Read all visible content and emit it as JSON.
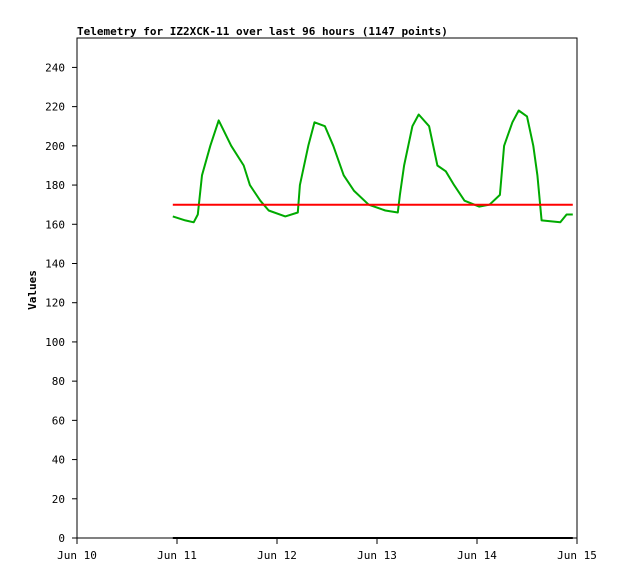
{
  "chart_data": {
    "type": "line",
    "title": "Telemetry for IZ2XCK-11 over last 96 hours (1147 points)",
    "xlabel": "",
    "ylabel": "Values",
    "xlim": [
      "Jun 10 00:00",
      "Jun 15 00:00"
    ],
    "ylim": [
      0,
      255
    ],
    "x_ticks": [
      "Jun 10",
      "Jun 11",
      "Jun 12",
      "Jun 13",
      "Jun 14",
      "Jun 15"
    ],
    "y_ticks": [
      0,
      20,
      40,
      60,
      80,
      100,
      120,
      140,
      160,
      180,
      200,
      220,
      240
    ],
    "grid": false,
    "series": [
      {
        "color": "#00aa00",
        "points": [
          [
            "Jun 10 23:00",
            164
          ],
          [
            "Jun 11 02:00",
            162
          ],
          [
            "Jun 11 04:00",
            161
          ],
          [
            "Jun 11 05:00",
            165
          ],
          [
            "Jun 11 06:00",
            185
          ],
          [
            "Jun 11 08:00",
            200
          ],
          [
            "Jun 11 10:00",
            213
          ],
          [
            "Jun 11 13:00",
            200
          ],
          [
            "Jun 11 16:00",
            190
          ],
          [
            "Jun 11 17:30",
            180
          ],
          [
            "Jun 11 20:00",
            172
          ],
          [
            "Jun 11 22:00",
            167
          ],
          [
            "Jun 12 02:00",
            164
          ],
          [
            "Jun 12 05:00",
            166
          ],
          [
            "Jun 12 05:30",
            180
          ],
          [
            "Jun 12 07:30",
            200
          ],
          [
            "Jun 12 09:00",
            212
          ],
          [
            "Jun 12 11:30",
            210
          ],
          [
            "Jun 12 13:30",
            200
          ],
          [
            "Jun 12 16:00",
            185
          ],
          [
            "Jun 12 18:30",
            177
          ],
          [
            "Jun 12 22:00",
            170
          ],
          [
            "Jun 13 02:00",
            167
          ],
          [
            "Jun 13 05:00",
            166
          ],
          [
            "Jun 13 05:30",
            175
          ],
          [
            "Jun 13 06:30",
            190
          ],
          [
            "Jun 13 08:30",
            210
          ],
          [
            "Jun 13 10:00",
            216
          ],
          [
            "Jun 13 12:30",
            210
          ],
          [
            "Jun 13 14:30",
            190
          ],
          [
            "Jun 13 16:30",
            187
          ],
          [
            "Jun 13 18:30",
            180
          ],
          [
            "Jun 13 21:00",
            172
          ],
          [
            "Jun 14 00:30",
            169
          ],
          [
            "Jun 14 03:00",
            170
          ],
          [
            "Jun 14 05:30",
            175
          ],
          [
            "Jun 14 06:30",
            200
          ],
          [
            "Jun 14 08:30",
            212
          ],
          [
            "Jun 14 10:00",
            218
          ],
          [
            "Jun 14 12:00",
            215
          ],
          [
            "Jun 14 13:30",
            200
          ],
          [
            "Jun 14 14:30",
            185
          ],
          [
            "Jun 14 15:30",
            162
          ],
          [
            "Jun 14 20:00",
            161
          ],
          [
            "Jun 14 21:30",
            165
          ],
          [
            "Jun 14 23:00",
            165
          ]
        ]
      },
      {
        "color": "#ff0000",
        "points": [
          [
            "Jun 10 23:00",
            170
          ],
          [
            "Jun 14 23:00",
            170
          ]
        ]
      },
      {
        "color": "#000000",
        "points": [
          [
            "Jun 10 23:00",
            0
          ],
          [
            "Jun 14 23:00",
            0
          ]
        ]
      }
    ]
  }
}
